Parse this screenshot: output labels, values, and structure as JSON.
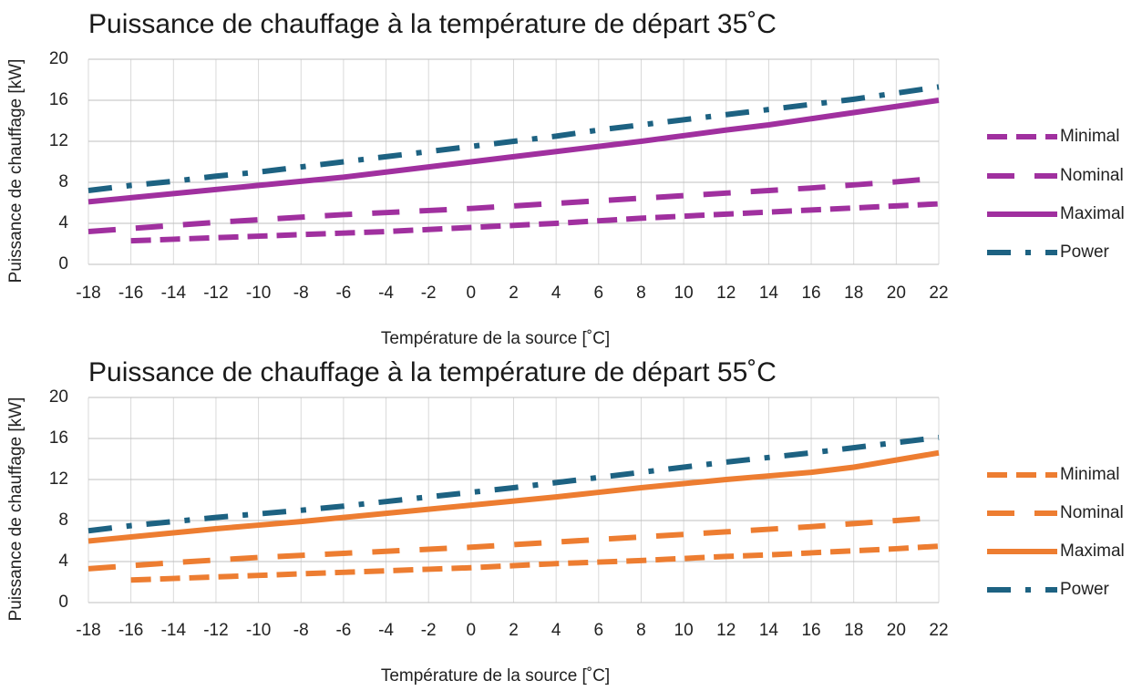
{
  "chart_data": [
    {
      "type": "line",
      "title": "Puissance de chauffage à la température de départ 35˚C",
      "x_label": "Température de la source [˚C]",
      "y_label": "Puissance de chauffage [kW]",
      "x": [
        -18,
        -16,
        -14,
        -12,
        -10,
        -8,
        -6,
        -4,
        -2,
        0,
        2,
        4,
        6,
        8,
        10,
        12,
        14,
        16,
        18,
        20,
        22
      ],
      "xlim": [
        -18,
        22
      ],
      "xticks": [
        -18,
        -16,
        -14,
        -12,
        -10,
        -8,
        -6,
        -4,
        -2,
        0,
        2,
        4,
        6,
        8,
        10,
        12,
        14,
        16,
        18,
        20,
        22
      ],
      "ylim": [
        0,
        20
      ],
      "yticks": [
        0,
        4,
        8,
        12,
        16,
        20
      ],
      "grid": true,
      "legend": "right",
      "series": [
        {
          "name": "Minimal",
          "color": "#a0309f",
          "style": "dash",
          "values": [
            null,
            2.3,
            2.45,
            2.6,
            2.75,
            2.9,
            3.05,
            3.2,
            3.4,
            3.6,
            3.8,
            4.0,
            4.25,
            4.5,
            4.7,
            4.9,
            5.1,
            5.3,
            5.5,
            5.7,
            5.9
          ]
        },
        {
          "name": "Nominal",
          "color": "#a0309f",
          "style": "longdash",
          "values": [
            3.2,
            3.5,
            3.8,
            4.1,
            4.35,
            4.6,
            4.85,
            5.05,
            5.25,
            5.45,
            5.7,
            5.95,
            6.2,
            6.45,
            6.7,
            6.95,
            7.2,
            7.45,
            7.75,
            8.05,
            8.4
          ]
        },
        {
          "name": "Maximal",
          "color": "#a0309f",
          "style": "solid",
          "values": [
            6.1,
            6.5,
            6.9,
            7.3,
            7.7,
            8.1,
            8.5,
            9.0,
            9.5,
            10.0,
            10.5,
            11.0,
            11.5,
            12.0,
            12.55,
            13.1,
            13.6,
            14.2,
            14.8,
            15.4,
            16.0
          ]
        },
        {
          "name": "Power",
          "color": "#1d6282",
          "style": "dashdot",
          "values": [
            7.2,
            7.7,
            8.1,
            8.6,
            9.0,
            9.5,
            10.0,
            10.5,
            11.0,
            11.5,
            12.0,
            12.5,
            13.1,
            13.6,
            14.1,
            14.6,
            15.1,
            15.6,
            16.1,
            16.7,
            17.3
          ]
        }
      ]
    },
    {
      "type": "line",
      "title": "Puissance de chauffage à la température de départ 55˚C",
      "x_label": "Température de la source [˚C]",
      "y_label": "Puissance de chauffage [kW]",
      "x": [
        -18,
        -16,
        -14,
        -12,
        -10,
        -8,
        -6,
        -4,
        -2,
        0,
        2,
        4,
        6,
        8,
        10,
        12,
        14,
        16,
        18,
        20,
        22
      ],
      "xlim": [
        -18,
        22
      ],
      "xticks": [
        -18,
        -16,
        -14,
        -12,
        -10,
        -8,
        -6,
        -4,
        -2,
        0,
        2,
        4,
        6,
        8,
        10,
        12,
        14,
        16,
        18,
        20,
        22
      ],
      "ylim": [
        0,
        20
      ],
      "yticks": [
        0,
        4,
        8,
        12,
        16,
        20
      ],
      "grid": true,
      "legend": "right",
      "series": [
        {
          "name": "Minimal",
          "color": "#ed7d31",
          "style": "dash",
          "values": [
            null,
            2.2,
            2.35,
            2.5,
            2.65,
            2.8,
            2.95,
            3.1,
            3.25,
            3.4,
            3.6,
            3.8,
            3.95,
            4.1,
            4.3,
            4.5,
            4.65,
            4.85,
            5.05,
            5.25,
            5.5
          ]
        },
        {
          "name": "Nominal",
          "color": "#ed7d31",
          "style": "longdash",
          "values": [
            3.3,
            3.6,
            3.9,
            4.15,
            4.4,
            4.6,
            4.8,
            5.0,
            5.2,
            5.4,
            5.65,
            5.9,
            6.15,
            6.4,
            6.65,
            6.9,
            7.15,
            7.4,
            7.7,
            8.0,
            8.3
          ]
        },
        {
          "name": "Maximal",
          "color": "#ed7d31",
          "style": "solid",
          "values": [
            6.0,
            6.4,
            6.8,
            7.2,
            7.55,
            7.9,
            8.3,
            8.7,
            9.1,
            9.5,
            9.9,
            10.3,
            10.75,
            11.2,
            11.6,
            12.0,
            12.35,
            12.7,
            13.2,
            13.9,
            14.6
          ]
        },
        {
          "name": "Power",
          "color": "#1d6282",
          "style": "dashdot",
          "values": [
            7.0,
            7.5,
            7.9,
            8.3,
            8.65,
            9.0,
            9.4,
            9.85,
            10.3,
            10.75,
            11.2,
            11.7,
            12.2,
            12.7,
            13.2,
            13.7,
            14.15,
            14.6,
            15.1,
            15.6,
            16.1
          ]
        }
      ]
    }
  ]
}
